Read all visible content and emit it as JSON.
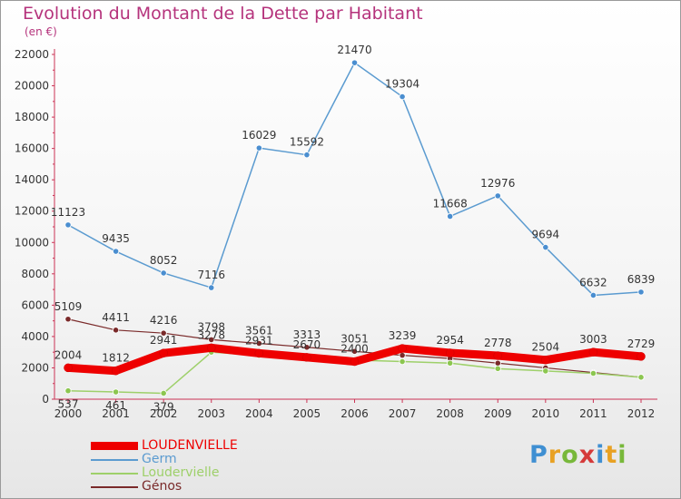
{
  "title": "Evolution du Montant de la Dette par Habitant",
  "unit": "(en €)",
  "brand": "Proxiti",
  "brand_letters": [
    {
      "ch": "P",
      "color": "#3f8fd2"
    },
    {
      "ch": "r",
      "color": "#e8a123"
    },
    {
      "ch": "o",
      "color": "#78b83a"
    },
    {
      "ch": "x",
      "color": "#d53a3a"
    },
    {
      "ch": "i",
      "color": "#3f8fd2"
    },
    {
      "ch": "t",
      "color": "#e8a123"
    },
    {
      "ch": "i",
      "color": "#78b83a"
    }
  ],
  "colors": {
    "title": "#b5337c",
    "axis": "#cc3355",
    "grid": "#d8d8d8"
  },
  "chart_data": {
    "type": "line",
    "x": [
      2000,
      2001,
      2002,
      2003,
      2004,
      2005,
      2006,
      2007,
      2008,
      2009,
      2010,
      2011,
      2012
    ],
    "ylim": [
      0,
      22000
    ],
    "yticks": [
      0,
      2000,
      4000,
      6000,
      8000,
      10000,
      12000,
      14000,
      16000,
      18000,
      20000,
      22000
    ],
    "grid": false,
    "legend_position": "bottom-left",
    "series": [
      {
        "name": "LOUDENVIELLE",
        "color": "#ee0000",
        "stroke": 9,
        "marker": "#ee0000",
        "values": [
          2004,
          1812,
          2941,
          3278,
          2931,
          2670,
          2400,
          3239,
          2954,
          2778,
          2504,
          3003,
          2729
        ],
        "labels": [
          "2004",
          "1812",
          "2941",
          "3278",
          "2931",
          "2670",
          "2400",
          "3239",
          "2954",
          "2778",
          "2504",
          "3003",
          "2729"
        ]
      },
      {
        "name": "Germ",
        "color": "#5b9bd0",
        "stroke": 1.5,
        "marker": "#4a8ed0",
        "values": [
          11123,
          9435,
          8052,
          7116,
          16029,
          15592,
          21470,
          19304,
          11668,
          12976,
          9694,
          6632,
          6839
        ],
        "labels": [
          "11123",
          "9435",
          "8052",
          "7116",
          "16029",
          "15592",
          "21470",
          "19304",
          "11668",
          "12976",
          "9694",
          "6632",
          "6839"
        ]
      },
      {
        "name": "Loudervielle",
        "color": "#9ed06a",
        "stroke": 1.5,
        "marker": "#8cc650",
        "values": [
          537,
          461,
          379,
          3000,
          2800,
          2600,
          2500,
          2400,
          2300,
          1950,
          1800,
          1650,
          1400
        ],
        "labels": [
          "537",
          "461",
          "379",
          "",
          "",
          "",
          "",
          "",
          "",
          "",
          "",
          "",
          ""
        ]
      },
      {
        "name": "Génos",
        "color": "#7a2a2a",
        "stroke": 1.2,
        "marker": "#7a2a2a",
        "values": [
          5109,
          4411,
          4216,
          3798,
          3561,
          3313,
          3051,
          2800,
          2600,
          2300,
          2000,
          1700,
          1400
        ],
        "labels": [
          "5109",
          "4411",
          "4216",
          "3798",
          "3561",
          "3313",
          "3051",
          "",
          "",
          "",
          "",
          "",
          ""
        ]
      }
    ]
  }
}
